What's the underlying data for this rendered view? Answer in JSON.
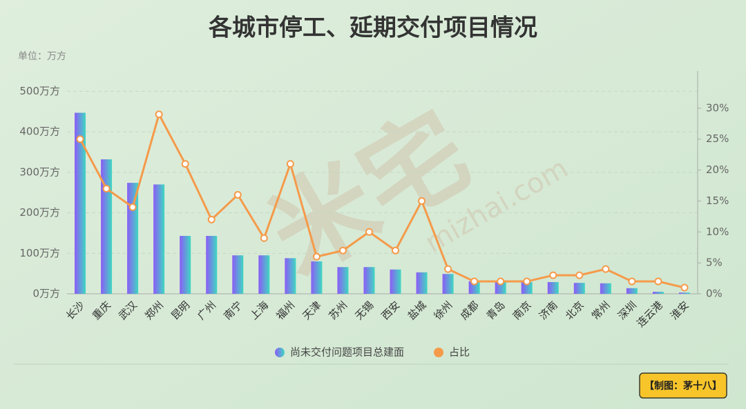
{
  "chart_data": {
    "type": "bar-line",
    "title": "各城市停工、延期交付项目情况",
    "unit_label": "单位：万方",
    "watermark": [
      "米宅",
      "mizhai.com"
    ],
    "credit": "【制图：茅十八】",
    "categories": [
      "长沙",
      "重庆",
      "武汉",
      "郑州",
      "昆明",
      "广州",
      "南宁",
      "上海",
      "福州",
      "天津",
      "苏州",
      "无锡",
      "西安",
      "盐城",
      "徐州",
      "成都",
      "青岛",
      "南京",
      "济南",
      "北京",
      "常州",
      "深圳",
      "连云港",
      "淮安"
    ],
    "series": [
      {
        "name": "尚未交付问题项目总建面",
        "type": "bar",
        "color": "#8b5cf6",
        "color2": "#3fd8c2",
        "values": [
          447,
          332,
          274,
          270,
          143,
          143,
          95,
          95,
          88,
          80,
          66,
          66,
          60,
          53,
          49,
          31,
          29,
          29,
          29,
          27,
          26,
          14,
          5,
          3
        ]
      },
      {
        "name": "占比",
        "type": "line",
        "axis": "y2",
        "color": "#f59a4a",
        "values": [
          25,
          17,
          14,
          29,
          21,
          12,
          16,
          9,
          21,
          6,
          7,
          10,
          7,
          15,
          4,
          2,
          2,
          2,
          3,
          3,
          4,
          2,
          2,
          1
        ]
      }
    ],
    "ylim": [
      0,
      550
    ],
    "yticks": [
      {
        "value": 0,
        "label": "0万方"
      },
      {
        "value": 100,
        "label": "100万方"
      },
      {
        "value": 200,
        "label": "200万方"
      },
      {
        "value": 300,
        "label": "300万方"
      },
      {
        "value": 400,
        "label": "400万方"
      },
      {
        "value": 500,
        "label": "500万方"
      }
    ],
    "y2lim": [
      0,
      36
    ],
    "y2ticks": [
      {
        "value": 0,
        "label": "0%"
      },
      {
        "value": 5,
        "label": "5%"
      },
      {
        "value": 10,
        "label": "10%"
      },
      {
        "value": 15,
        "label": "15%"
      },
      {
        "value": 20,
        "label": "20%"
      },
      {
        "value": 25,
        "label": "25%"
      },
      {
        "value": 30,
        "label": "30%"
      }
    ],
    "grid": true
  }
}
